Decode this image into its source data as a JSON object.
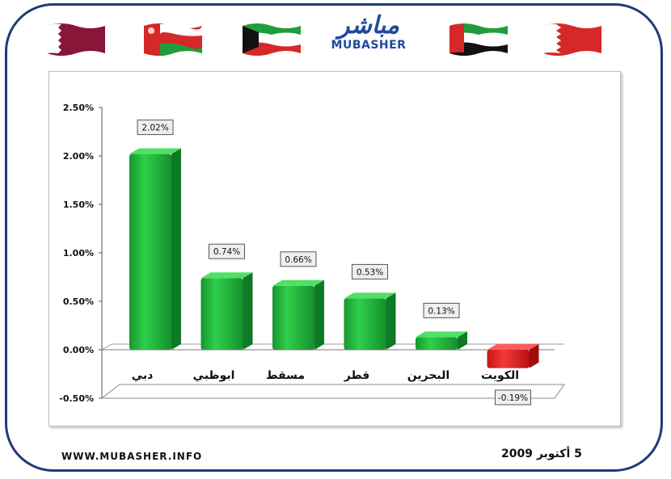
{
  "header": {
    "logo_ar": "مباشر",
    "logo_en": "MUBASHER",
    "flags": [
      "qatar-flag",
      "oman-flag",
      "kuwait-flag",
      "uae-flag",
      "bahrain-flag"
    ]
  },
  "footer": {
    "website": "WWW.MUBASHER.INFO",
    "date": "5 أكتوبر 2009"
  },
  "colors": {
    "positive": "#1fae3a",
    "negative": "#e01b1b",
    "frame": "#1f3b78"
  },
  "chart_data": {
    "type": "bar",
    "categories": [
      "دبي",
      "ابوظبي",
      "مسقط",
      "قطر",
      "البحرين",
      "الكويت"
    ],
    "values": [
      2.02,
      0.74,
      0.66,
      0.53,
      0.13,
      -0.19
    ],
    "data_labels": [
      "2.02%",
      "0.74%",
      "0.66%",
      "0.53%",
      "0.13%",
      "-0.19%"
    ],
    "y_ticks": [
      "2.50%",
      "2.00%",
      "1.50%",
      "1.00%",
      "0.50%",
      "0.00%",
      "-0.50%"
    ],
    "ylim": [
      -0.5,
      2.5
    ],
    "grid": false,
    "legend": "none"
  }
}
